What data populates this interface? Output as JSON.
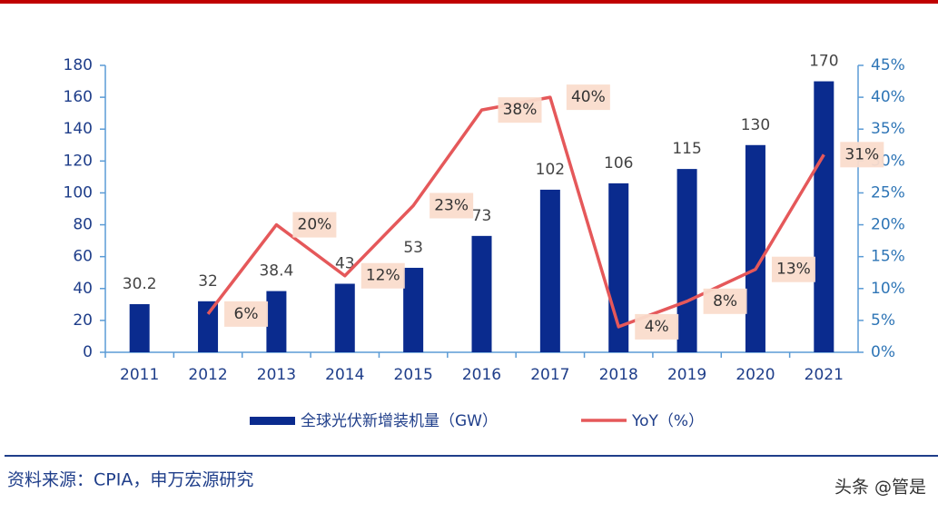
{
  "chart_data": {
    "type": "bar-line",
    "categories": [
      "2011",
      "2012",
      "2013",
      "2014",
      "2015",
      "2016",
      "2017",
      "2018",
      "2019",
      "2020",
      "2021"
    ],
    "series": [
      {
        "name": "全球光伏新增装机量（GW）",
        "type": "bar",
        "color": "#0a2b8e",
        "values": [
          30.2,
          32,
          38.4,
          43,
          53,
          73,
          102,
          106,
          115,
          130,
          170
        ]
      },
      {
        "name": "YoY（%）",
        "type": "line",
        "axis": "y2",
        "color": "#e5585a",
        "values": [
          null,
          6,
          20,
          12,
          23,
          38,
          40,
          4,
          8,
          13,
          31
        ],
        "value_labels": [
          null,
          "6%",
          "20%",
          "12%",
          "23%",
          "38%",
          "40%",
          "4%",
          "8%",
          "13%",
          "31%"
        ]
      }
    ],
    "ylim": [
      0,
      180
    ],
    "yticks": [
      0,
      20,
      40,
      60,
      80,
      100,
      120,
      140,
      160,
      180
    ],
    "y2lim": [
      0,
      45
    ],
    "y2ticks": [
      {
        "value": 0,
        "label": "0%"
      },
      {
        "value": 5,
        "label": "5%"
      },
      {
        "value": 10,
        "label": "10%"
      },
      {
        "value": 15,
        "label": "15%"
      },
      {
        "value": 20,
        "label": "20%"
      },
      {
        "value": 25,
        "label": "25%"
      },
      {
        "value": 30,
        "label": "30%"
      },
      {
        "value": 35,
        "label": "35%"
      },
      {
        "value": 40,
        "label": "40%"
      },
      {
        "value": 45,
        "label": "45%"
      }
    ],
    "source": "资料来源：CPIA，申万宏源研究",
    "watermark": "头条 @管是"
  }
}
